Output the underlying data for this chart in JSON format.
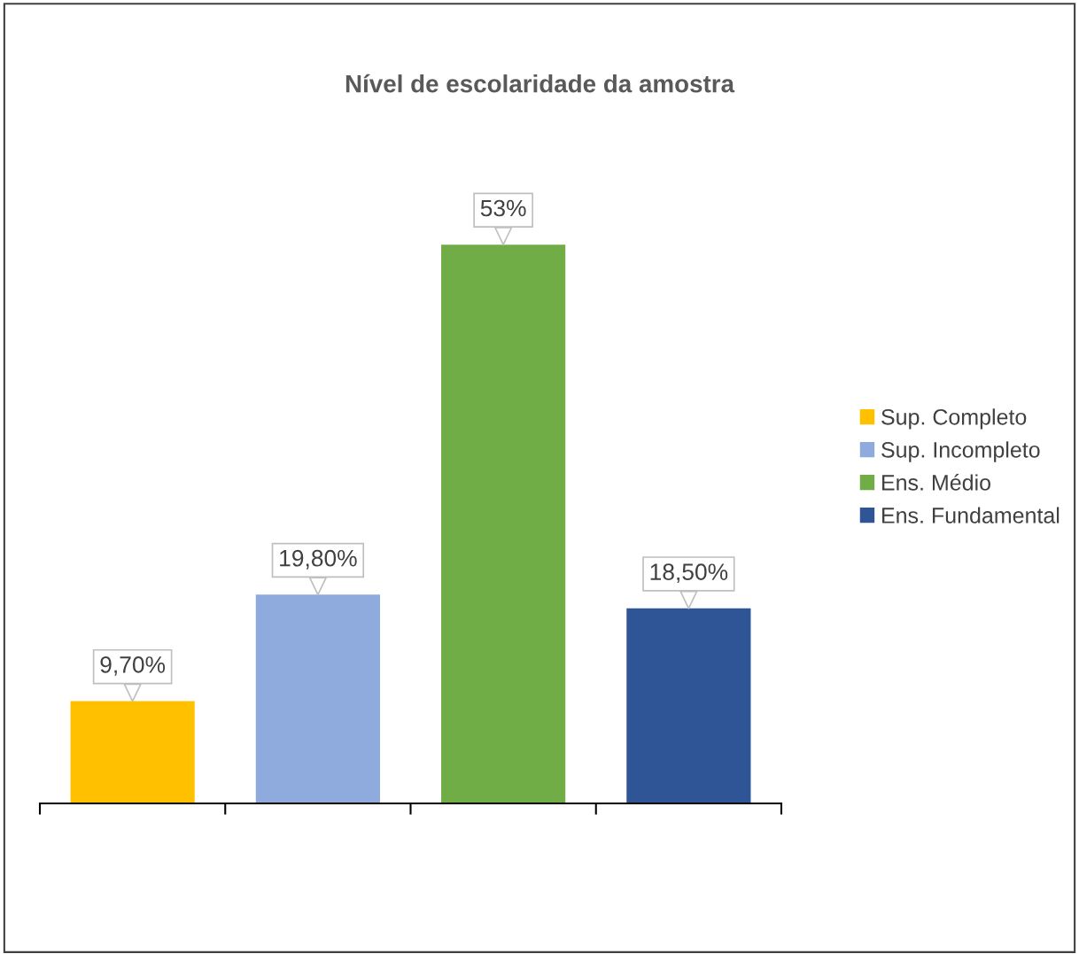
{
  "chart_data": {
    "type": "bar",
    "title": "Nível de escolaridade da amostra",
    "categories": [
      null,
      null,
      null,
      null
    ],
    "stacked": true,
    "series": [
      {
        "name": "Sup. Completo",
        "color": "#ffc000",
        "values": [
          9.7,
          0,
          0,
          0
        ],
        "value_labels": [
          "9,70%",
          null,
          null,
          null
        ]
      },
      {
        "name": "Sup. Incompleto",
        "color": "#8faadc",
        "values": [
          0,
          19.8,
          0,
          0
        ],
        "value_labels": [
          null,
          "19,80%",
          null,
          null
        ]
      },
      {
        "name": "Ens. Médio",
        "color": "#70ad47",
        "values": [
          0,
          0,
          53,
          0
        ],
        "value_labels": [
          null,
          null,
          "53%",
          null
        ]
      },
      {
        "name": "Ens. Fundamental",
        "color": "#2f5597",
        "values": [
          0,
          0,
          0,
          18.5
        ],
        "value_labels": [
          null,
          null,
          null,
          "18,50%"
        ]
      }
    ],
    "legend": "right",
    "grid": false
  }
}
